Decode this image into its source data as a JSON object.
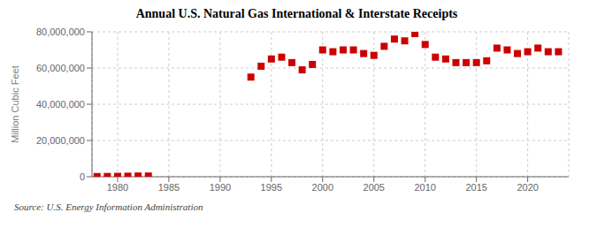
{
  "chart_data": {
    "type": "scatter",
    "title": "Annual U.S. Natural Gas International & Interstate Receipts",
    "ylabel": "Million Cubic Feet",
    "annotations": [
      "Source: U.S. Energy Information Administration"
    ],
    "x": [
      1978,
      1979,
      1980,
      1981,
      1982,
      1983,
      1993,
      1994,
      1995,
      1996,
      1997,
      1998,
      1999,
      2000,
      2001,
      2002,
      2003,
      2004,
      2005,
      2006,
      2007,
      2008,
      2009,
      2010,
      2011,
      2012,
      2013,
      2014,
      2015,
      2016,
      2017,
      2018,
      2019,
      2020,
      2021,
      2022,
      2023
    ],
    "values": [
      100000,
      150000,
      200000,
      300000,
      400000,
      400000,
      55000000,
      61000000,
      65000000,
      66000000,
      63000000,
      59000000,
      62000000,
      70000000,
      69000000,
      70000000,
      70000000,
      68000000,
      67000000,
      72000000,
      76000000,
      75000000,
      79000000,
      73000000,
      66000000,
      65000000,
      63000000,
      63000000,
      63000000,
      64000000,
      71000000,
      70000000,
      68000000,
      69000000,
      71000000,
      69000000,
      69000000
    ],
    "color": "#cc0000",
    "marker": "square",
    "xlim": [
      1977.5,
      2024
    ],
    "xticks": [
      1980,
      1985,
      1990,
      1995,
      2000,
      2005,
      2010,
      2015,
      2020
    ],
    "ylim": [
      0,
      80000000
    ],
    "yticks": [
      0,
      {
        "value": 20000000,
        "label": "20,000,000"
      },
      {
        "value": 40000000,
        "label": "40,000,000"
      },
      {
        "value": 60000000,
        "label": "60,000,000"
      },
      {
        "value": 80000000,
        "label": "80,000,000"
      }
    ],
    "grid": true
  }
}
